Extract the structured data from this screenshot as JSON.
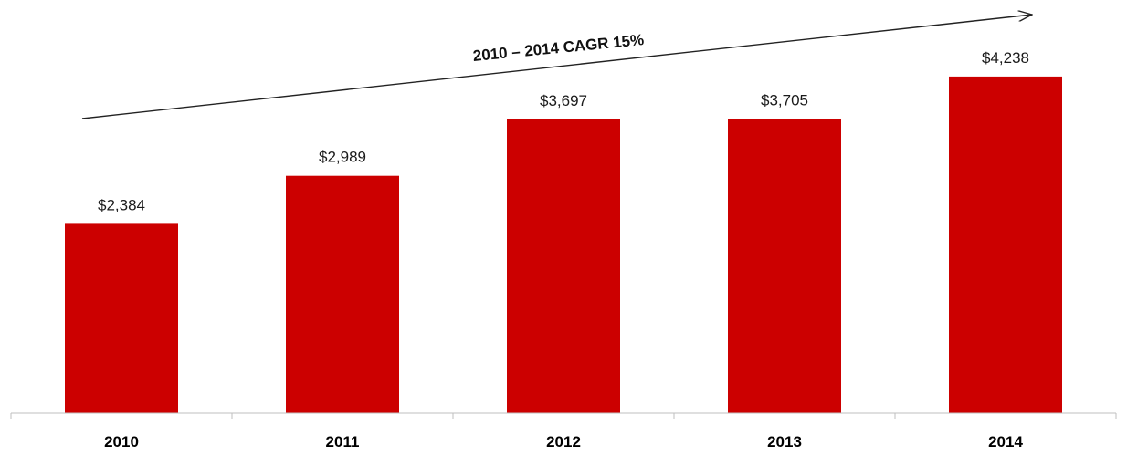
{
  "chart_data": {
    "type": "bar",
    "categories": [
      "2010",
      "2011",
      "2012",
      "2013",
      "2014"
    ],
    "values": [
      2384,
      2989,
      3697,
      3705,
      4238
    ],
    "value_labels": [
      "$2,384",
      "$2,989",
      "$3,697",
      "$3,705",
      "$4,238"
    ],
    "title": "",
    "xlabel": "",
    "ylabel": "",
    "ylim": [
      0,
      4650
    ],
    "grid": false,
    "bar_color": "#cc0000",
    "annotation": {
      "text": "2010 – 2014 CAGR 15%",
      "type": "arrow"
    }
  }
}
